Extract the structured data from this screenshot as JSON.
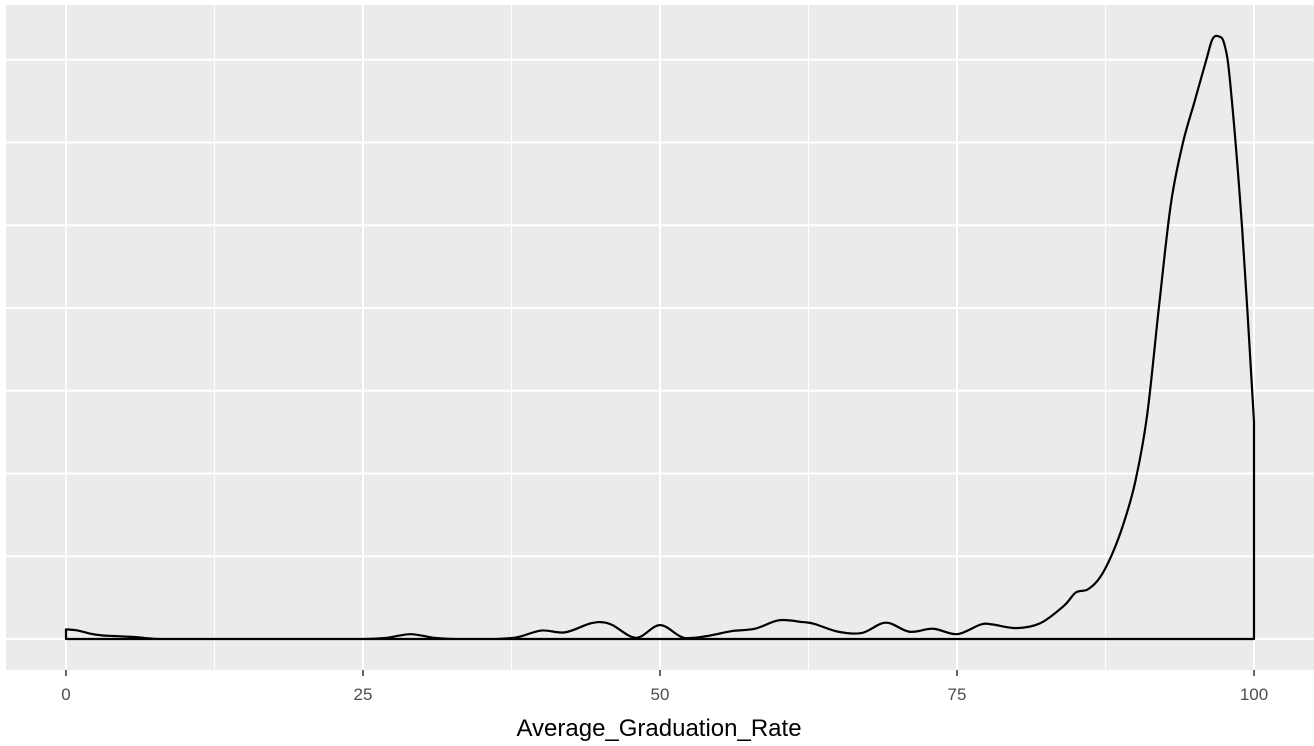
{
  "chart_data": {
    "type": "area",
    "title": "",
    "xlabel": "Average_Graduation_Rate",
    "ylabel": "",
    "xlim": [
      -5,
      105
    ],
    "ylim": [
      0,
      1
    ],
    "x_ticks": [
      0,
      25,
      50,
      75,
      100
    ],
    "x_tick_labels": [
      "0",
      "25",
      "50",
      "75",
      "100"
    ],
    "x_minor_ticks": [
      12.5,
      37.5,
      62.5,
      87.5
    ],
    "y_gridlines": [
      0,
      0.137,
      0.274,
      0.411,
      0.548,
      0.685,
      0.822,
      0.959
    ],
    "grid": true,
    "y_tick_labels_shown": false,
    "colors": {
      "panel": "#ebebeb",
      "grid": "#ffffff",
      "line": "#000000",
      "text": "#4d4d4d"
    },
    "series": [
      {
        "x": [
          0,
          1,
          2,
          3,
          4,
          5,
          6,
          7,
          8,
          10,
          15,
          20,
          25,
          27,
          29,
          31,
          33,
          36,
          38,
          40,
          42,
          44,
          45,
          46,
          48,
          50,
          52,
          54,
          56,
          58,
          60,
          62,
          63,
          65,
          67,
          69,
          71,
          73,
          75,
          77,
          78,
          80,
          82,
          84,
          85,
          86,
          87,
          88,
          89,
          90,
          91,
          92,
          93,
          94,
          95,
          96,
          96.5,
          97,
          97.5,
          98,
          99,
          100
        ],
        "y": [
          0.016,
          0.014,
          0.009,
          0.006,
          0.005,
          0.004,
          0.003,
          0.001,
          0.0,
          0.0,
          0.0,
          0.0,
          0.0,
          0.002,
          0.008,
          0.002,
          0.0,
          0.0,
          0.003,
          0.014,
          0.011,
          0.025,
          0.028,
          0.023,
          0.002,
          0.023,
          0.002,
          0.005,
          0.013,
          0.017,
          0.031,
          0.028,
          0.025,
          0.012,
          0.01,
          0.027,
          0.012,
          0.017,
          0.008,
          0.024,
          0.024,
          0.018,
          0.026,
          0.055,
          0.077,
          0.082,
          0.101,
          0.138,
          0.19,
          0.26,
          0.37,
          0.55,
          0.72,
          0.82,
          0.89,
          0.96,
          0.993,
          0.998,
          0.985,
          0.92,
          0.68,
          0.36
        ]
      }
    ]
  }
}
